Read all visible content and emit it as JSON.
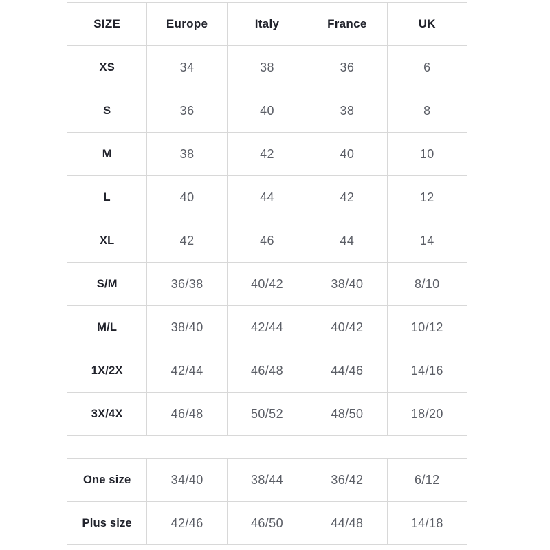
{
  "main_table": {
    "headers": [
      "SIZE",
      "Europe",
      "Italy",
      "France",
      "UK"
    ],
    "rows": [
      {
        "size": "XS",
        "values": [
          "34",
          "38",
          "36",
          "6"
        ]
      },
      {
        "size": "S",
        "values": [
          "36",
          "40",
          "38",
          "8"
        ]
      },
      {
        "size": "M",
        "values": [
          "38",
          "42",
          "40",
          "10"
        ]
      },
      {
        "size": "L",
        "values": [
          "40",
          "44",
          "42",
          "12"
        ]
      },
      {
        "size": "XL",
        "values": [
          "42",
          "46",
          "44",
          "14"
        ]
      },
      {
        "size": "S/M",
        "values": [
          "36/38",
          "40/42",
          "38/40",
          "8/10"
        ]
      },
      {
        "size": "M/L",
        "values": [
          "38/40",
          "42/44",
          "40/42",
          "10/12"
        ]
      },
      {
        "size": "1X/2X",
        "values": [
          "42/44",
          "46/48",
          "44/46",
          "14/16"
        ]
      },
      {
        "size": "3X/4X",
        "values": [
          "46/48",
          "50/52",
          "48/50",
          "18/20"
        ]
      }
    ]
  },
  "special_table": {
    "rows": [
      {
        "size": "One size",
        "values": [
          "34/40",
          "38/44",
          "36/42",
          "6/12"
        ]
      },
      {
        "size": "Plus size",
        "values": [
          "42/46",
          "46/50",
          "44/48",
          "14/18"
        ]
      }
    ]
  },
  "colors": {
    "background": "#ffffff",
    "border": "#d8d8d8",
    "label_text": "#20222b",
    "value_text": "#5b5e66"
  },
  "chart_data": {
    "type": "table",
    "columns": [
      "SIZE",
      "Europe",
      "Italy",
      "France",
      "UK"
    ],
    "rows": [
      [
        "XS",
        "34",
        "38",
        "36",
        "6"
      ],
      [
        "S",
        "36",
        "40",
        "38",
        "8"
      ],
      [
        "M",
        "38",
        "42",
        "40",
        "10"
      ],
      [
        "L",
        "40",
        "44",
        "42",
        "12"
      ],
      [
        "XL",
        "42",
        "46",
        "44",
        "14"
      ],
      [
        "S/M",
        "36/38",
        "40/42",
        "38/40",
        "8/10"
      ],
      [
        "M/L",
        "38/40",
        "42/44",
        "40/42",
        "10/12"
      ],
      [
        "1X/2X",
        "42/44",
        "46/48",
        "44/46",
        "14/16"
      ],
      [
        "3X/4X",
        "46/48",
        "50/52",
        "48/50",
        "18/20"
      ]
    ],
    "secondary_rows": [
      [
        "One size",
        "34/40",
        "38/44",
        "36/42",
        "6/12"
      ],
      [
        "Plus size",
        "42/46",
        "46/50",
        "44/48",
        "14/18"
      ]
    ],
    "layout": "two stacked tables, 5 equal columns, grid on, no title"
  }
}
